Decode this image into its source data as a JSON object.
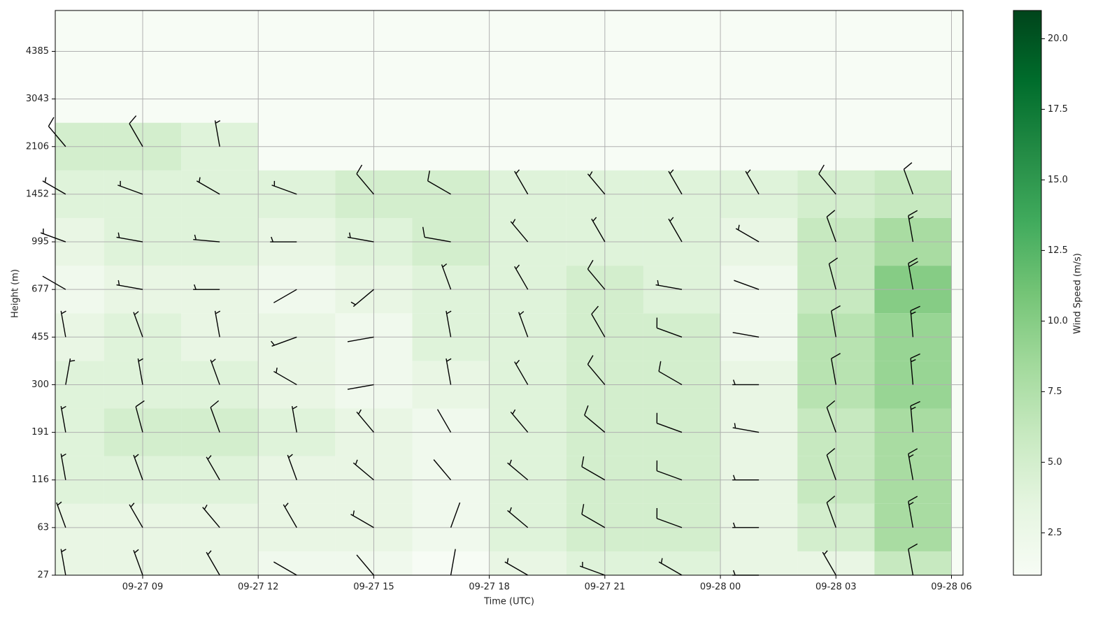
{
  "chart_data": {
    "type": "barbs",
    "xlabel": "Time (UTC)",
    "ylabel": "Height (m)",
    "colorbar_label": "Wind Speed (m/s)",
    "x": [
      7,
      9,
      11,
      13,
      15,
      17,
      19,
      21,
      23,
      25,
      27,
      29
    ],
    "levels": [
      27,
      63,
      116,
      191,
      300,
      455,
      677,
      995,
      1452,
      2106
    ],
    "speed": [
      [
        3,
        3,
        3,
        2,
        2,
        1,
        3,
        4,
        4,
        3,
        3,
        6
      ],
      [
        3,
        3,
        3,
        3,
        3,
        2,
        4,
        5,
        5,
        3,
        5,
        8
      ],
      [
        4,
        4,
        4,
        3,
        3,
        2,
        4,
        5,
        5,
        3,
        6,
        8
      ],
      [
        4,
        5,
        5,
        4,
        3,
        2,
        4,
        5,
        5,
        3,
        6,
        8
      ],
      [
        4,
        4,
        4,
        3,
        2,
        3,
        4,
        5,
        5,
        3,
        7,
        9
      ],
      [
        3,
        4,
        3,
        3,
        2,
        4,
        4,
        5,
        5,
        2,
        7,
        9
      ],
      [
        2,
        3,
        3,
        2,
        3,
        4,
        4,
        5,
        4,
        2,
        6,
        10
      ],
      [
        3,
        4,
        4,
        3,
        4,
        5,
        4,
        4,
        4,
        3,
        6,
        8
      ],
      [
        4,
        4,
        4,
        4,
        5,
        5,
        4,
        4,
        4,
        4,
        5,
        6
      ],
      [
        5,
        5,
        4,
        null,
        null,
        null,
        null,
        null,
        null,
        null,
        null,
        null
      ]
    ],
    "direction": [
      [
        350,
        340,
        330,
        300,
        320,
        10,
        300,
        290,
        300,
        270,
        330,
        350
      ],
      [
        340,
        330,
        320,
        330,
        300,
        20,
        310,
        300,
        290,
        270,
        340,
        350
      ],
      [
        350,
        340,
        330,
        340,
        310,
        320,
        310,
        300,
        290,
        270,
        340,
        350
      ],
      [
        350,
        345,
        340,
        350,
        320,
        330,
        320,
        310,
        290,
        280,
        340,
        355
      ],
      [
        10,
        350,
        340,
        300,
        260,
        350,
        330,
        320,
        300,
        270,
        350,
        355
      ],
      [
        350,
        340,
        350,
        250,
        260,
        350,
        340,
        330,
        290,
        280,
        350,
        355
      ],
      [
        300,
        280,
        270,
        240,
        230,
        340,
        330,
        320,
        280,
        290,
        345,
        350
      ],
      [
        290,
        280,
        275,
        270,
        280,
        280,
        320,
        330,
        330,
        300,
        340,
        350
      ],
      [
        300,
        290,
        300,
        290,
        320,
        300,
        330,
        320,
        330,
        330,
        320,
        340
      ],
      [
        320,
        330,
        350,
        null,
        null,
        null,
        null,
        null,
        null,
        null,
        null,
        null
      ]
    ],
    "xlim": [
      6.73,
      30.3
    ],
    "xticks": [
      {
        "value": 9,
        "label": "09-27 09"
      },
      {
        "value": 12,
        "label": "09-27 12"
      },
      {
        "value": 15,
        "label": "09-27 15"
      },
      {
        "value": 18,
        "label": "09-27 18"
      },
      {
        "value": 21,
        "label": "09-27 21"
      },
      {
        "value": 24,
        "label": "09-28 00"
      },
      {
        "value": 27,
        "label": "09-28 03"
      },
      {
        "value": 30,
        "label": "09-28 06"
      }
    ],
    "ylim": [
      27,
      6000
    ],
    "yticks": [
      27,
      63,
      116,
      191,
      300,
      455,
      677,
      995,
      1452,
      2106,
      3043,
      4385
    ],
    "clim": [
      1,
      21
    ],
    "cticks": [
      2.5,
      {
        "value": 5,
        "label": "5.0"
      },
      7.5,
      {
        "value": 10,
        "label": "10.0"
      },
      12.5,
      {
        "value": 15,
        "label": "15.0"
      },
      17.5,
      {
        "value": 20,
        "label": "20.0"
      }
    ],
    "colormap": [
      "#f7fcf5",
      "#e5f5e0",
      "#c7e9c0",
      "#a1d99b",
      "#74c476",
      "#41ab5d",
      "#238b45",
      "#006d2c",
      "#00441b"
    ],
    "barb_color": "#000000",
    "grid": true
  }
}
